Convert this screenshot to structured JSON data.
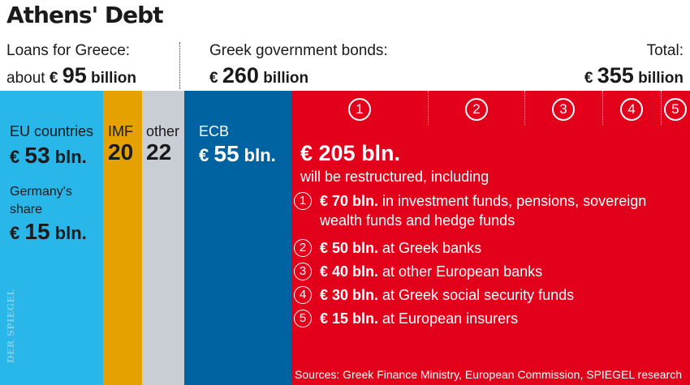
{
  "title": "Athens' Debt",
  "header": {
    "loans_label": "Loans for Greece:",
    "loans_prefix": "about",
    "loans_currency": "€",
    "loans_value": "95",
    "loans_unit": "billion",
    "bonds_label": "Greek government bonds:",
    "bonds_currency": "€",
    "bonds_value": "260",
    "bonds_unit": "billion",
    "total_label": "Total:",
    "total_currency": "€",
    "total_value": "355",
    "total_unit": "billion"
  },
  "blocks": {
    "eu_label": "EU countries",
    "eu_currency": "€",
    "eu_value": "53",
    "eu_unit": "bln.",
    "germany_line1": "Germany's",
    "germany_line2": "share",
    "germany_currency": "€",
    "germany_value": "15",
    "germany_unit": "bln.",
    "imf_label": "IMF",
    "imf_value": "20",
    "other_label": "other",
    "other_value": "22",
    "ecb_label": "ECB",
    "ecb_currency": "€",
    "ecb_value": "55",
    "ecb_unit": "bln.",
    "restructured_amount": "€ 205 bln.",
    "restructured_text": "will be restructured, including"
  },
  "chart_data": {
    "type": "bar",
    "title": "Athens' Debt",
    "unit": "billion €",
    "total": 355,
    "segments": [
      {
        "name": "EU countries",
        "value": 53,
        "color": "#29b6e8"
      },
      {
        "name": "IMF",
        "value": 20,
        "color": "#e5a100"
      },
      {
        "name": "other",
        "value": 22,
        "color": "#c8ced4"
      },
      {
        "name": "ECB",
        "value": 55,
        "color": "#0063a1"
      },
      {
        "name": "€ 205 bln.",
        "value": 205,
        "color": "#e3001b"
      }
    ],
    "germany_share": 15,
    "groups": [
      {
        "name": "Loans for Greece",
        "value": 95
      },
      {
        "name": "Greek government bonds",
        "value": 260
      }
    ],
    "restructured_breakdown": [
      {
        "num": "1",
        "value": 70,
        "amount": "€ 70 bln.",
        "line1": " in investment funds, pensions, sovereign",
        "line2": "wealth funds and hedge funds"
      },
      {
        "num": "2",
        "value": 50,
        "amount": "€ 50 bln.",
        "line1": " at Greek banks"
      },
      {
        "num": "3",
        "value": 40,
        "amount": "€ 40 bln.",
        "line1": " at other European banks"
      },
      {
        "num": "4",
        "value": 30,
        "amount": "€ 30 bln.",
        "line1": " at Greek social security funds"
      },
      {
        "num": "5",
        "value": 15,
        "amount": "€ 15 bln.",
        "line1": " at European insurers"
      }
    ]
  },
  "sources": "Sources: Greek Finance Ministry, European Commission, SPIEGEL research",
  "watermark": "DER SPIEGEL"
}
